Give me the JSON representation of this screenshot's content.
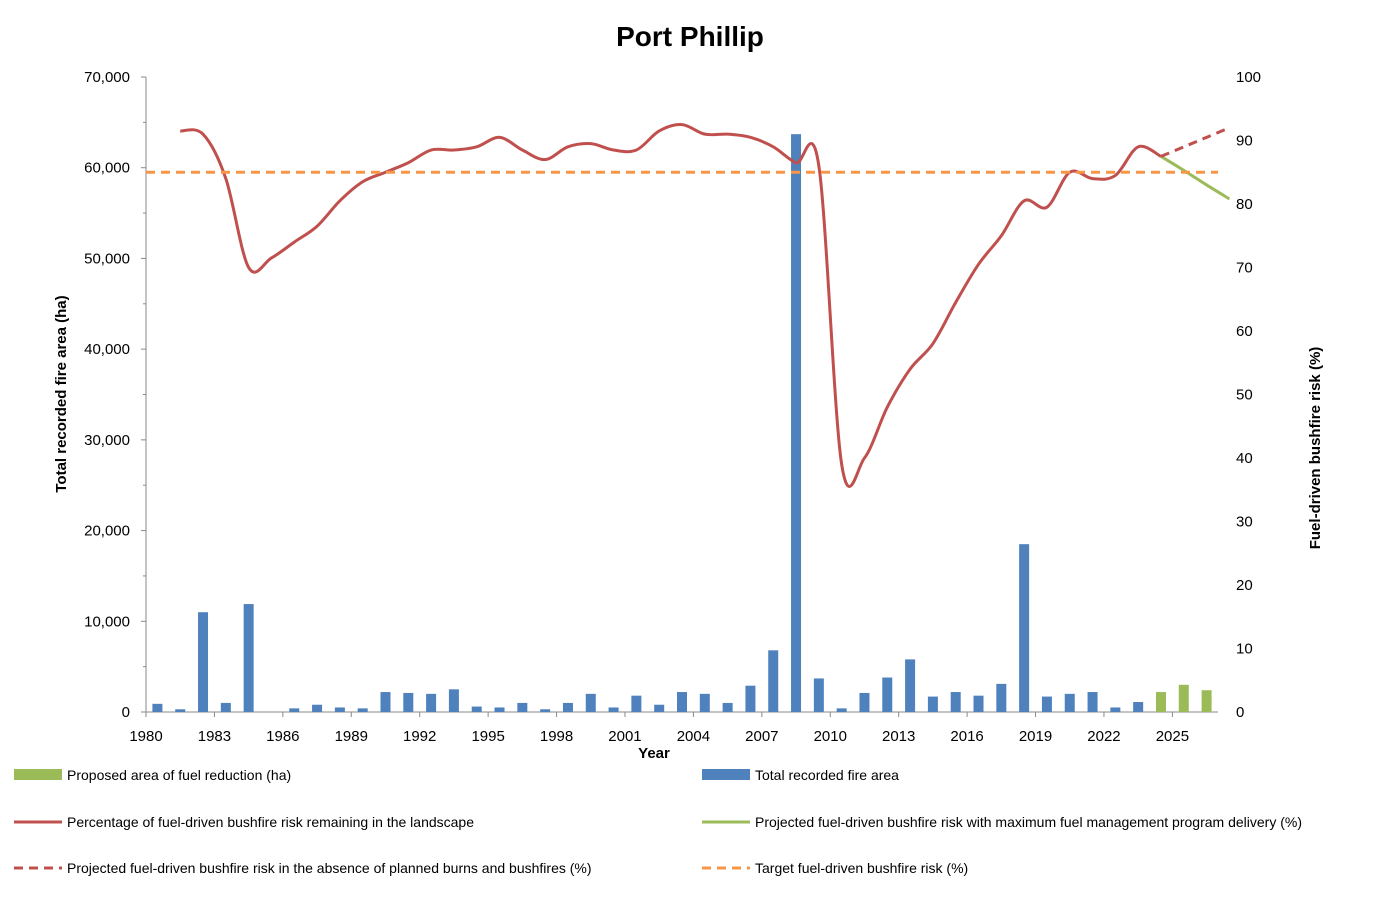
{
  "chart_data": {
    "type": "bar",
    "title": "Port Phillip",
    "xlabel": "Year",
    "ylabel_left": "Total recorded fire area (ha)",
    "ylabel_right": "Fuel-driven bushfire risk (%)",
    "ylim_left": [
      0,
      70000
    ],
    "ylim_right": [
      0,
      100
    ],
    "x_range": [
      1980,
      2027
    ],
    "x_ticks": [
      "1980",
      "1983",
      "1986",
      "1989",
      "1992",
      "1995",
      "1998",
      "2001",
      "2004",
      "2007",
      "2010",
      "2013",
      "2016",
      "2019",
      "2022",
      "2025"
    ],
    "y_left_ticks": [
      "0",
      "10,000",
      "20,000",
      "30,000",
      "40,000",
      "50,000",
      "60,000",
      "70,000"
    ],
    "y_right_ticks": [
      "0",
      "10",
      "20",
      "30",
      "40",
      "50",
      "60",
      "70",
      "80",
      "90",
      "100"
    ],
    "grid": false,
    "legend_position": "bottom",
    "series": [
      {
        "name": "Total recorded fire area",
        "kind": "bar",
        "axis": "left",
        "color": "#4f81bd",
        "x": [
          1980,
          1981,
          1982,
          1983,
          1984,
          1985,
          1986,
          1987,
          1988,
          1989,
          1990,
          1991,
          1992,
          1993,
          1994,
          1995,
          1996,
          1997,
          1998,
          1999,
          2000,
          2001,
          2002,
          2003,
          2004,
          2005,
          2006,
          2007,
          2008,
          2009,
          2010,
          2011,
          2012,
          2013,
          2014,
          2015,
          2016,
          2017,
          2018,
          2019,
          2020,
          2021,
          2022,
          2023
        ],
        "values": [
          900,
          300,
          11000,
          1000,
          11900,
          0,
          400,
          800,
          500,
          400,
          2200,
          2100,
          2000,
          2500,
          600,
          500,
          1000,
          300,
          1000,
          2000,
          500,
          1800,
          800,
          2200,
          2000,
          1000,
          2900,
          6800,
          63700,
          3700,
          400,
          2100,
          3800,
          5800,
          1700,
          2200,
          1800,
          3100,
          18500,
          1700,
          2000,
          2200,
          500,
          1100
        ]
      },
      {
        "name": "Proposed area of fuel reduction (ha)",
        "kind": "bar",
        "axis": "left",
        "color": "#9bbb59",
        "x": [
          2024,
          2025,
          2026
        ],
        "values": [
          2200,
          3000,
          2400
        ]
      },
      {
        "name": "Percentage of fuel-driven bushfire risk remaining in the landscape",
        "kind": "line",
        "axis": "right",
        "color": "#c0504d",
        "x": [
          1981,
          1982,
          1983,
          1984,
          1985,
          1986,
          1987,
          1988,
          1989,
          1990,
          1991,
          1992,
          1993,
          1994,
          1995,
          1996,
          1997,
          1998,
          1999,
          2000,
          2001,
          2002,
          2003,
          2004,
          2005,
          2006,
          2007,
          2008,
          2009,
          2010,
          2011,
          2012,
          2013,
          2014,
          2015,
          2016,
          2017,
          2018,
          2019,
          2020,
          2021,
          2022,
          2023,
          2024
        ],
        "values": [
          91.5,
          91,
          84,
          70,
          71.5,
          74,
          76.5,
          80.5,
          83.5,
          85,
          86.5,
          88.5,
          88.5,
          89,
          90.5,
          88.5,
          87,
          89,
          89.5,
          88.5,
          88.5,
          91.5,
          92.5,
          91,
          91,
          90.5,
          89,
          86.5,
          86,
          39,
          40,
          48,
          54,
          58,
          64.5,
          70.5,
          75,
          80.5,
          79.5,
          85,
          84,
          84.5,
          89,
          87.5
        ]
      },
      {
        "name": "Projected fuel-driven bushfire risk with maximum fuel management program delivery  (%)",
        "kind": "line",
        "axis": "right",
        "color": "#9bbb59",
        "x": [
          2024,
          2025,
          2026,
          2027
        ],
        "values": [
          87.5,
          85.3,
          83,
          80.8
        ]
      },
      {
        "name": "Projected fuel-driven bushfire risk in the absence of planned burns and bushfires (%)",
        "kind": "line",
        "dashed": true,
        "axis": "right",
        "color": "#c0504d",
        "x": [
          2024,
          2025,
          2026,
          2027
        ],
        "values": [
          87.5,
          89,
          90.5,
          92
        ]
      },
      {
        "name": "Target fuel-driven bushfire risk (%)",
        "kind": "line",
        "dashed": true,
        "axis": "right",
        "color": "#f79646",
        "x": [
          1980,
          2027
        ],
        "values": [
          85,
          85
        ]
      }
    ]
  }
}
